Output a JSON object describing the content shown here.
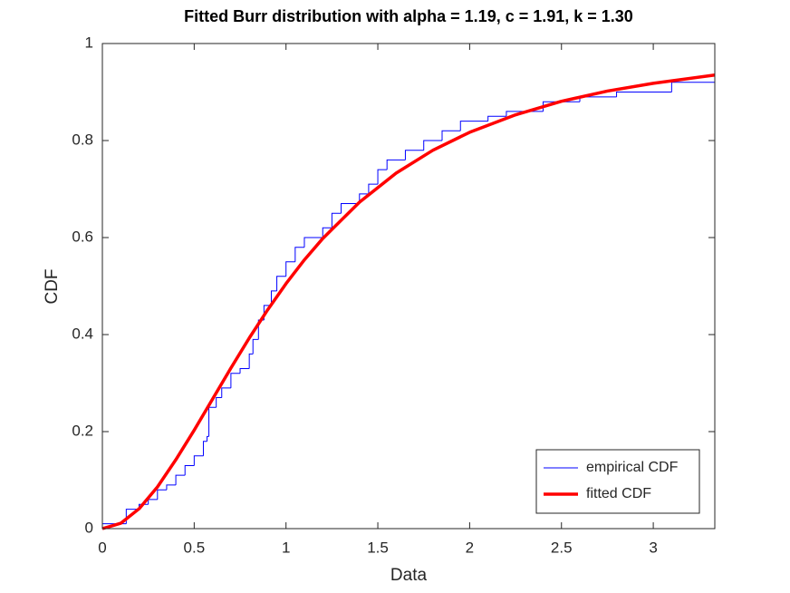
{
  "chart_data": {
    "type": "line",
    "title": "Fitted Burr distribution with alpha = 1.19, c = 1.91, k = 1.30",
    "x_label": "Data",
    "y_label": "CDF",
    "xlim": [
      0,
      3.335
    ],
    "ylim": [
      0,
      1
    ],
    "xticks": [
      0,
      0.5,
      1,
      1.5,
      2,
      2.5,
      3
    ],
    "yticks": [
      0,
      0.2,
      0.4,
      0.6,
      0.8,
      1
    ],
    "grid": false,
    "legend_position": "southeast",
    "series": [
      {
        "name": "empirical CDF",
        "color": "#0000ff",
        "style": "stairs",
        "x": [
          0,
          0.13,
          0.2,
          0.25,
          0.3,
          0.35,
          0.4,
          0.45,
          0.5,
          0.55,
          0.57,
          0.58,
          0.62,
          0.65,
          0.7,
          0.75,
          0.8,
          0.82,
          0.85,
          0.88,
          0.92,
          0.95,
          1.0,
          1.05,
          1.1,
          1.2,
          1.25,
          1.3,
          1.4,
          1.45,
          1.5,
          1.55,
          1.65,
          1.75,
          1.85,
          1.95,
          2.1,
          2.2,
          2.4,
          2.6,
          2.8,
          3.1
        ],
        "values": [
          0.01,
          0.04,
          0.05,
          0.06,
          0.08,
          0.09,
          0.11,
          0.13,
          0.15,
          0.18,
          0.19,
          0.25,
          0.27,
          0.29,
          0.32,
          0.33,
          0.36,
          0.39,
          0.43,
          0.46,
          0.49,
          0.52,
          0.55,
          0.58,
          0.6,
          0.62,
          0.65,
          0.67,
          0.69,
          0.71,
          0.74,
          0.76,
          0.78,
          0.8,
          0.82,
          0.84,
          0.85,
          0.86,
          0.88,
          0.89,
          0.9,
          0.92
        ]
      },
      {
        "name": "fitted CDF",
        "color": "#ff0000",
        "style": "line",
        "x": [
          0,
          0.1,
          0.2,
          0.3,
          0.4,
          0.5,
          0.6,
          0.7,
          0.8,
          0.9,
          1.0,
          1.1,
          1.2,
          1.4,
          1.6,
          1.8,
          2.0,
          2.25,
          2.5,
          2.75,
          3.0,
          3.335
        ],
        "values": [
          0,
          0.011,
          0.041,
          0.086,
          0.142,
          0.203,
          0.267,
          0.331,
          0.393,
          0.451,
          0.505,
          0.554,
          0.598,
          0.673,
          0.733,
          0.78,
          0.817,
          0.853,
          0.881,
          0.902,
          0.918,
          0.935
        ]
      }
    ]
  }
}
